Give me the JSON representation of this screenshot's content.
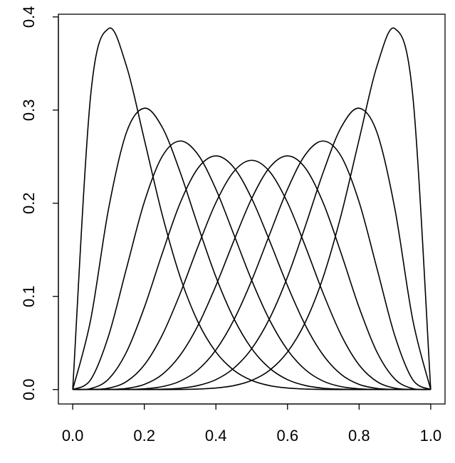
{
  "chart_data": {
    "type": "line",
    "x": [
      0,
      0.05,
      0.1,
      0.15,
      0.2,
      0.25,
      0.3,
      0.35,
      0.4,
      0.45,
      0.5,
      0.55,
      0.6,
      0.65,
      0.7,
      0.75,
      0.8,
      0.85,
      0.9,
      0.95,
      1
    ],
    "series": [
      {
        "color": "#000000",
        "values": [
          0,
          0.3151,
          0.3874,
          0.3474,
          0.2684,
          0.1877,
          0.1211,
          0.0725,
          0.0403,
          0.0207,
          0.0098,
          0.0042,
          0.0016,
          0.0005,
          0.0001,
          0,
          0,
          0,
          0,
          0,
          0
        ]
      },
      {
        "color": "#000000",
        "values": [
          0,
          0.0746,
          0.1937,
          0.2759,
          0.302,
          0.2816,
          0.2335,
          0.1757,
          0.1209,
          0.0763,
          0.0439,
          0.0229,
          0.0106,
          0.0043,
          0.0014,
          0.0004,
          0.0001,
          0,
          0,
          0,
          0
        ]
      },
      {
        "color": "#000000",
        "values": [
          0,
          0.0105,
          0.0574,
          0.1298,
          0.2013,
          0.2503,
          0.2668,
          0.2522,
          0.215,
          0.1665,
          0.1172,
          0.0746,
          0.0425,
          0.0212,
          0.009,
          0.0031,
          0.0008,
          0.0001,
          0,
          0,
          0
        ]
      },
      {
        "color": "#000000",
        "values": [
          0,
          0.001,
          0.0112,
          0.0401,
          0.0881,
          0.146,
          0.2001,
          0.2377,
          0.2508,
          0.2384,
          0.2051,
          0.1596,
          0.1115,
          0.0689,
          0.0368,
          0.0162,
          0.0055,
          0.0012,
          0.0001,
          0,
          0
        ]
      },
      {
        "color": "#000000",
        "values": [
          0,
          0.0001,
          0.0015,
          0.0085,
          0.0264,
          0.0584,
          0.1029,
          0.1536,
          0.2007,
          0.234,
          0.2461,
          0.234,
          0.2007,
          0.1536,
          0.1029,
          0.0584,
          0.0264,
          0.0085,
          0.0015,
          0.0001,
          0
        ]
      },
      {
        "color": "#000000",
        "values": [
          0,
          0,
          0.0001,
          0.0012,
          0.0055,
          0.0162,
          0.0368,
          0.0689,
          0.1115,
          0.1596,
          0.2051,
          0.2384,
          0.2508,
          0.2377,
          0.2001,
          0.146,
          0.0881,
          0.0401,
          0.0112,
          0.001,
          0
        ]
      },
      {
        "color": "#000000",
        "values": [
          0,
          0,
          0,
          0.0001,
          0.0008,
          0.0031,
          0.009,
          0.0212,
          0.0425,
          0.0746,
          0.1172,
          0.1665,
          0.215,
          0.2522,
          0.2668,
          0.2503,
          0.2013,
          0.1298,
          0.0574,
          0.0105,
          0
        ]
      },
      {
        "color": "#000000",
        "values": [
          0,
          0,
          0,
          0,
          0.0001,
          0.0004,
          0.0014,
          0.0043,
          0.0106,
          0.0229,
          0.0439,
          0.0763,
          0.1209,
          0.1757,
          0.2335,
          0.2816,
          0.302,
          0.2759,
          0.1937,
          0.0746,
          0
        ]
      },
      {
        "color": "#000000",
        "values": [
          0,
          0,
          0,
          0,
          0,
          0,
          0.0001,
          0.0005,
          0.0016,
          0.0042,
          0.0098,
          0.0207,
          0.0403,
          0.0725,
          0.1211,
          0.1877,
          0.2684,
          0.3474,
          0.3874,
          0.3151,
          0
        ]
      }
    ],
    "xlim": [
      -0.04,
      1.04
    ],
    "ylim": [
      -0.0155,
      0.4029
    ],
    "xticks": [
      {
        "value": 0,
        "label": "0.0"
      },
      0.2,
      0.4,
      0.6,
      0.8,
      {
        "value": 1,
        "label": "1.0"
      }
    ],
    "yticks": [
      {
        "value": 0,
        "label": "0.0"
      },
      0.1,
      0.2,
      0.3,
      0.4
    ]
  }
}
